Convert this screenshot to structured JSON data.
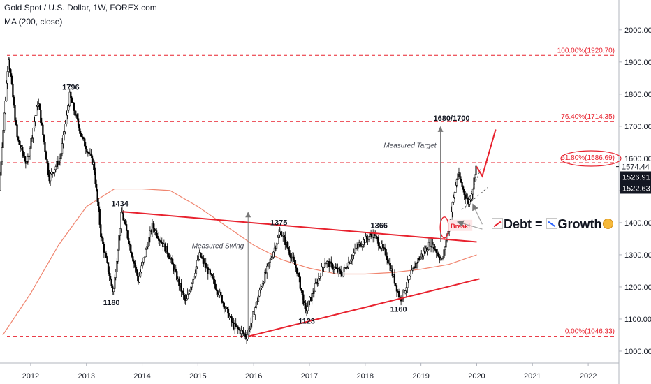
{
  "header": {
    "title": "Gold Spot / U.S. Dollar, 1W, FOREX.com",
    "indicator": "MA (200, close)"
  },
  "annotation": {
    "debt": "Debt =",
    "growth": "Growth"
  },
  "colors": {
    "candles": "#000000",
    "ma": "#f0856f",
    "trend": "#e8222e",
    "fib": "#e8222e",
    "arrows": "#a0a0a0"
  },
  "chart_data": {
    "type": "candlestick",
    "title": "Gold Spot / U.S. Dollar, 1W, FOREX.com",
    "xlabel": "",
    "ylabel": "",
    "x_ticks": [
      "2012",
      "2013",
      "2014",
      "2015",
      "2016",
      "2017",
      "2018",
      "2019",
      "2020",
      "2021",
      "2022"
    ],
    "y_ticks": [
      "1000.00",
      "1100.00",
      "1200.00",
      "1300.00",
      "1400.00",
      "1500.00",
      "1600.00",
      "1700.00",
      "1800.00",
      "1900.00",
      "2000.00"
    ],
    "xlim": [
      2011.45,
      2022.55
    ],
    "ylim": [
      963,
      2093
    ],
    "price_path": [
      {
        "date": 2011.45,
        "price": 1500
      },
      {
        "date": 2011.62,
        "price": 1920
      },
      {
        "date": 2011.78,
        "price": 1660
      },
      {
        "date": 2011.95,
        "price": 1580
      },
      {
        "date": 2012.15,
        "price": 1780
      },
      {
        "date": 2012.35,
        "price": 1540
      },
      {
        "date": 2012.55,
        "price": 1600
      },
      {
        "date": 2012.72,
        "price": 1796
      },
      {
        "date": 2012.95,
        "price": 1660
      },
      {
        "date": 2013.15,
        "price": 1580
      },
      {
        "date": 2013.28,
        "price": 1360
      },
      {
        "date": 2013.5,
        "price": 1180
      },
      {
        "date": 2013.65,
        "price": 1434
      },
      {
        "date": 2013.95,
        "price": 1220
      },
      {
        "date": 2014.2,
        "price": 1390
      },
      {
        "date": 2014.5,
        "price": 1300
      },
      {
        "date": 2014.8,
        "price": 1150
      },
      {
        "date": 2015.05,
        "price": 1300
      },
      {
        "date": 2015.4,
        "price": 1180
      },
      {
        "date": 2015.65,
        "price": 1080
      },
      {
        "date": 2015.9,
        "price": 1046
      },
      {
        "date": 2016.15,
        "price": 1200
      },
      {
        "date": 2016.5,
        "price": 1375
      },
      {
        "date": 2016.8,
        "price": 1250
      },
      {
        "date": 2016.95,
        "price": 1123
      },
      {
        "date": 2017.3,
        "price": 1280
      },
      {
        "date": 2017.6,
        "price": 1240
      },
      {
        "date": 2017.9,
        "price": 1330
      },
      {
        "date": 2018.15,
        "price": 1366
      },
      {
        "date": 2018.4,
        "price": 1300
      },
      {
        "date": 2018.65,
        "price": 1160
      },
      {
        "date": 2018.95,
        "price": 1280
      },
      {
        "date": 2019.2,
        "price": 1340
      },
      {
        "date": 2019.4,
        "price": 1280
      },
      {
        "date": 2019.55,
        "price": 1420
      },
      {
        "date": 2019.68,
        "price": 1555
      },
      {
        "date": 2019.8,
        "price": 1490
      },
      {
        "date": 2019.88,
        "price": 1460
      },
      {
        "date": 2019.95,
        "price": 1510
      },
      {
        "date": 2020.0,
        "price": 1574
      }
    ],
    "ma200": [
      {
        "date": 2011.5,
        "price": 1050
      },
      {
        "date": 2012.0,
        "price": 1180
      },
      {
        "date": 2012.5,
        "price": 1330
      },
      {
        "date": 2013.0,
        "price": 1450
      },
      {
        "date": 2013.5,
        "price": 1505
      },
      {
        "date": 2014.0,
        "price": 1505
      },
      {
        "date": 2014.5,
        "price": 1500
      },
      {
        "date": 2015.0,
        "price": 1450
      },
      {
        "date": 2015.5,
        "price": 1390
      },
      {
        "date": 2016.0,
        "price": 1330
      },
      {
        "date": 2016.5,
        "price": 1285
      },
      {
        "date": 2017.0,
        "price": 1258
      },
      {
        "date": 2017.5,
        "price": 1240
      },
      {
        "date": 2018.0,
        "price": 1240
      },
      {
        "date": 2018.5,
        "price": 1245
      },
      {
        "date": 2019.0,
        "price": 1255
      },
      {
        "date": 2019.5,
        "price": 1270
      },
      {
        "date": 2020.0,
        "price": 1300
      }
    ],
    "fib_levels": [
      {
        "label": "100.00%(1920.70)",
        "price": 1920.7,
        "circled": false
      },
      {
        "label": "76.40%(1714.35)",
        "price": 1714.35,
        "circled": false
      },
      {
        "label": "61.80%(1586.69)",
        "price": 1586.69,
        "circled": true
      },
      {
        "label": "0.00%(1046.33)",
        "price": 1046.33,
        "circled": false
      }
    ],
    "price_labels": [
      {
        "label": "1574.44",
        "price": 1574.44,
        "style": "plain"
      },
      {
        "label": "1526.91",
        "price": 1526.91,
        "style": "dark"
      },
      {
        "label": "1522.63",
        "price": 1522.63,
        "style": "dark"
      }
    ],
    "dotted_level": 1526.91,
    "trendlines": [
      {
        "x1": 2013.65,
        "y1": 1434,
        "x2": 2020.0,
        "y2": 1340
      },
      {
        "x1": 2015.9,
        "y1": 1046,
        "x2": 2020.05,
        "y2": 1225
      }
    ],
    "point_labels": [
      {
        "text": "1796",
        "date": 2012.72,
        "price": 1796,
        "pos": "above"
      },
      {
        "text": "1434",
        "date": 2013.6,
        "price": 1434,
        "pos": "above"
      },
      {
        "text": "1180",
        "date": 2013.45,
        "price": 1180,
        "pos": "below"
      },
      {
        "text": "1375",
        "date": 2016.45,
        "price": 1375,
        "pos": "above"
      },
      {
        "text": "1123",
        "date": 2016.95,
        "price": 1123,
        "pos": "below"
      },
      {
        "text": "1366",
        "date": 2018.25,
        "price": 1366,
        "pos": "above"
      },
      {
        "text": "1160",
        "date": 2018.6,
        "price": 1160,
        "pos": "below"
      },
      {
        "text": "1680/1700",
        "date": 2019.55,
        "price": 1700,
        "pos": "above"
      }
    ],
    "measured_swing": {
      "label": "Measured Swing",
      "date": 2015.9,
      "from": 1046,
      "to": 1434
    },
    "measured_target": {
      "label": "Measured Target",
      "date": 2019.35,
      "from": 1340,
      "to": 1700
    },
    "break_label": "Break!"
  }
}
